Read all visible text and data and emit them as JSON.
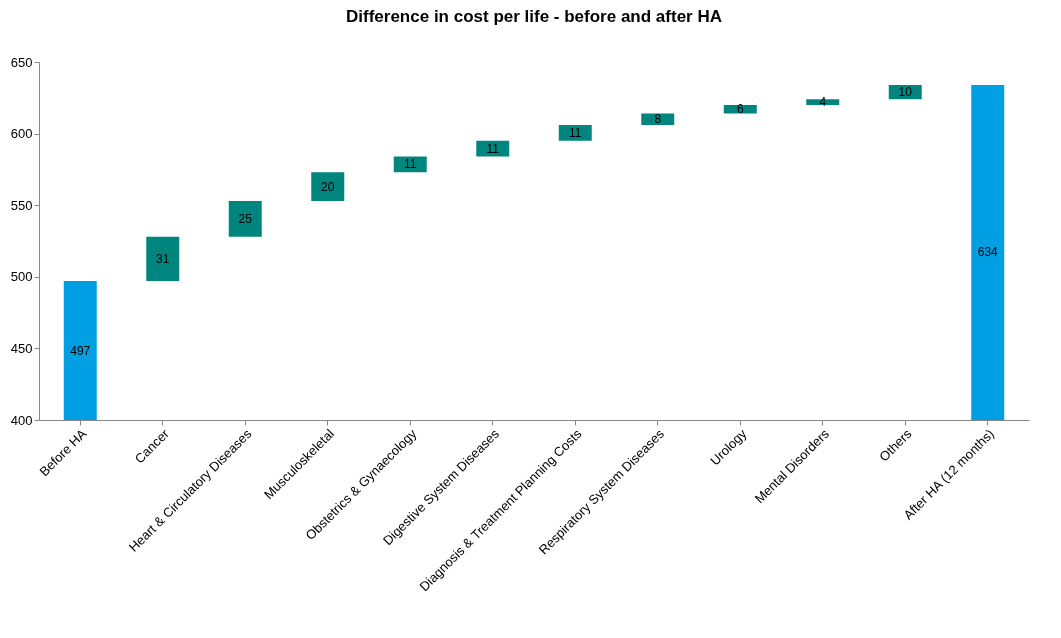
{
  "chart_data": {
    "type": "bar",
    "title": "Difference in cost per life - before and after HA",
    "categories": [
      "Before HA",
      "Cancer",
      "Heart & Circulatory Diseases",
      "Musculoskeletal",
      "Obstetrics & Gynaecology",
      "Digestive System Diseases",
      "Diagnosis & Treatment Planning Costs",
      "Respiratory System Diseases",
      "Urology",
      "Mental Disorders",
      "Others",
      "After HA (12 months)"
    ],
    "values": [
      497,
      31,
      25,
      20,
      11,
      11,
      11,
      8,
      6,
      4,
      10,
      634
    ],
    "base": [
      null,
      497,
      528,
      553,
      573,
      584,
      595,
      606,
      614,
      620,
      624,
      null
    ],
    "colors": [
      "#009fe3",
      "#00867f",
      "#00867f",
      "#00867f",
      "#00867f",
      "#00867f",
      "#00867f",
      "#00867f",
      "#00867f",
      "#00867f",
      "#00867f",
      "#009fe3"
    ],
    "ylim": [
      400,
      650
    ],
    "yticks": [
      400,
      450,
      500,
      550,
      600,
      650
    ],
    "grid": false,
    "data_labels": true
  }
}
